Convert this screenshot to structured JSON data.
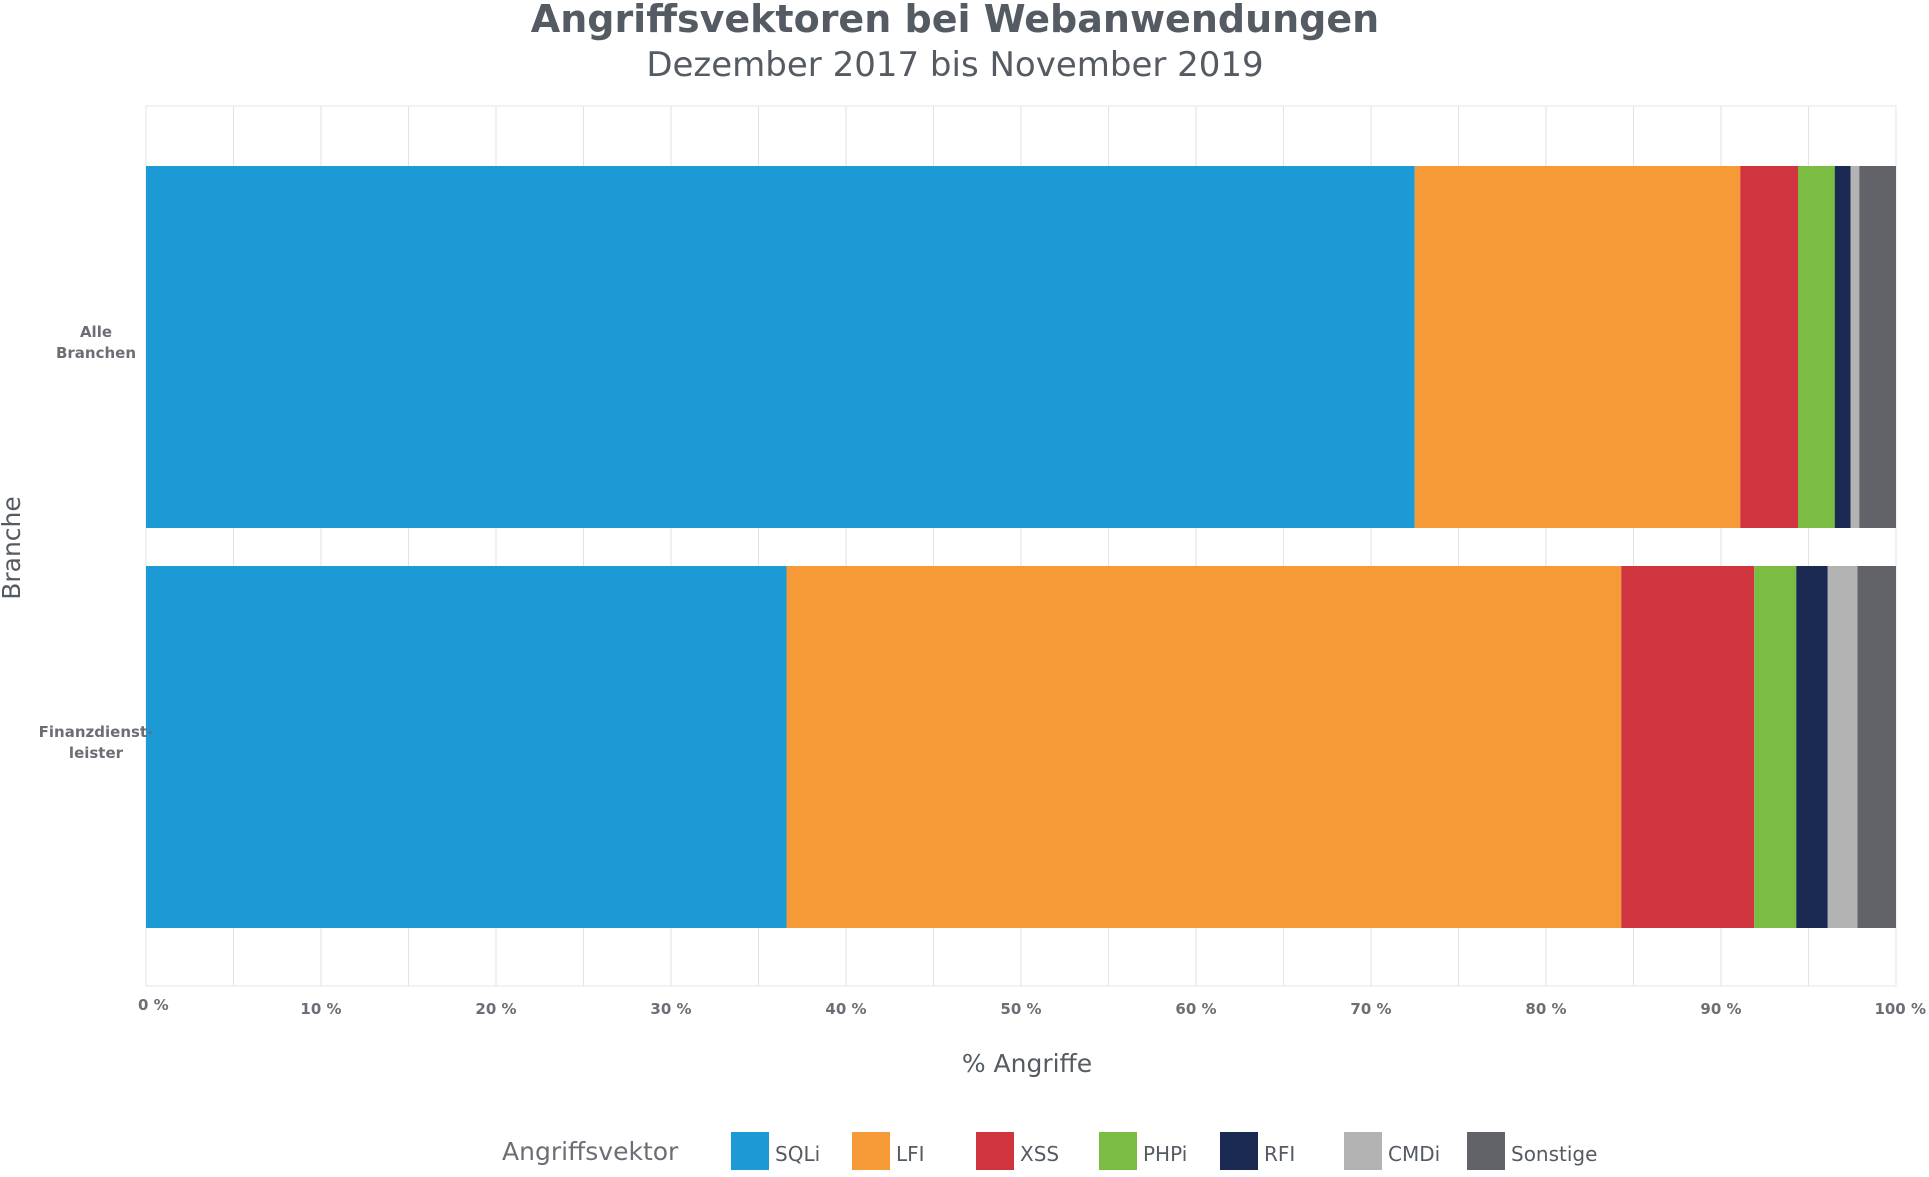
{
  "chart_data": {
    "type": "bar",
    "orientation": "horizontal",
    "stacked": true,
    "title": "Angriffsvektoren bei Webanwendungen",
    "subtitle": "Dezember 2017 bis November 2019",
    "xlabel": "% Angriffe",
    "ylabel": "Branche",
    "xlim": [
      0,
      100
    ],
    "x_ticks": [
      "0 %",
      "10 %",
      "20 %",
      "30 %",
      "40 %",
      "50 %",
      "60 %",
      "70 %",
      "80 %",
      "90 %",
      "100 %"
    ],
    "x_tick_values": [
      0,
      10,
      20,
      30,
      40,
      50,
      60,
      70,
      80,
      90,
      100
    ],
    "categories": [
      {
        "lines": [
          "Alle",
          "Branchen"
        ]
      },
      {
        "lines": [
          "Finanzdienst-",
          "leister"
        ]
      }
    ],
    "series": [
      {
        "name": "SQLi",
        "color": "#1b9ad6",
        "values": [
          72.5,
          36.6
        ]
      },
      {
        "name": "LFI",
        "color": "#f69a37",
        "values": [
          18.6,
          47.7
        ]
      },
      {
        "name": "XSS",
        "color": "#d0343e",
        "values": [
          3.3,
          7.6
        ]
      },
      {
        "name": "PHPi",
        "color": "#7bbd42",
        "values": [
          2.1,
          2.4
        ]
      },
      {
        "name": "RFI",
        "color": "#1b2a52",
        "values": [
          0.9,
          1.8
        ]
      },
      {
        "name": "CMDi",
        "color": "#b3b3b3",
        "values": [
          0.5,
          1.7
        ]
      },
      {
        "name": "Sonstige",
        "color": "#626368",
        "values": [
          2.1,
          2.2
        ]
      }
    ],
    "legend": {
      "title": "Angriffsvektor",
      "position": "bottom"
    },
    "grid": true
  }
}
